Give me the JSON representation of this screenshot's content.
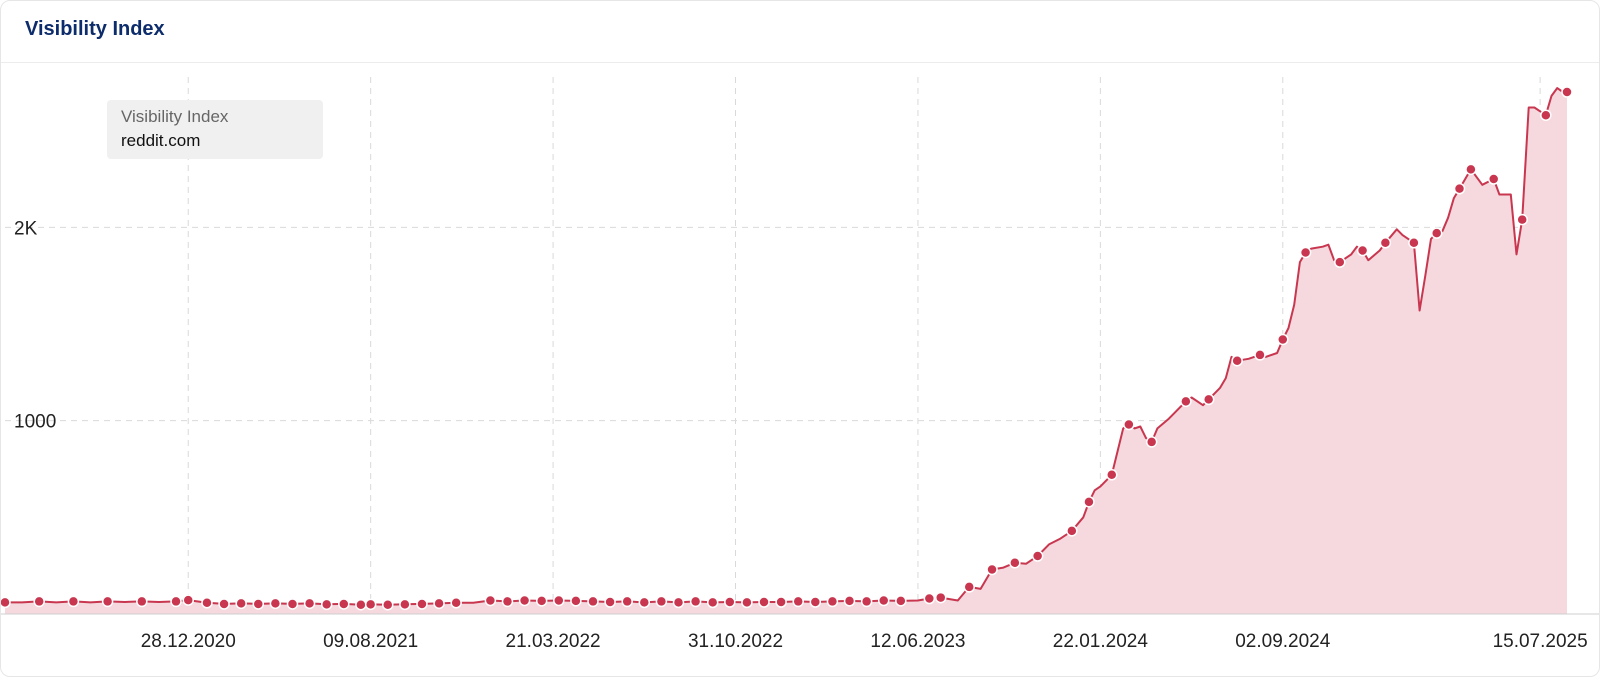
{
  "card": {
    "title": "Visibility Index"
  },
  "legend": {
    "label": "Visibility Index",
    "domain": "reddit.com"
  },
  "colors": {
    "line": "#c8374f",
    "fill": "#f5d9de",
    "marker_stroke": "#ffffff",
    "grid": "#d9d9d9",
    "title": "#0d2c6c"
  },
  "chart_data": {
    "type": "area",
    "title": "Visibility Index",
    "xlabel": "",
    "ylabel": "",
    "ylim": [
      0,
      2850
    ],
    "xlim": [
      "2020-05-17",
      "2025-08-17"
    ],
    "yticks": [
      {
        "value": 1000,
        "label": "1000"
      },
      {
        "value": 2000,
        "label": "2K"
      }
    ],
    "xticks": [
      "28.12.2020",
      "09.08.2021",
      "21.03.2022",
      "31.10.2022",
      "12.06.2023",
      "22.01.2024",
      "02.09.2024",
      "15.07.2025"
    ],
    "grid": true,
    "legend_position": "top-left",
    "series": [
      {
        "name": "reddit.com",
        "points": [
          [
            "2020-05-17",
            60
          ],
          [
            "2020-06-07",
            60
          ],
          [
            "2020-06-28",
            65
          ],
          [
            "2020-07-19",
            60
          ],
          [
            "2020-08-09",
            65
          ],
          [
            "2020-08-30",
            60
          ],
          [
            "2020-09-20",
            65
          ],
          [
            "2020-10-11",
            62
          ],
          [
            "2020-11-01",
            65
          ],
          [
            "2020-11-22",
            62
          ],
          [
            "2020-12-13",
            65
          ],
          [
            "2020-12-28",
            72
          ],
          [
            "2021-01-20",
            58
          ],
          [
            "2021-02-10",
            52
          ],
          [
            "2021-03-03",
            55
          ],
          [
            "2021-03-24",
            52
          ],
          [
            "2021-04-14",
            55
          ],
          [
            "2021-05-05",
            52
          ],
          [
            "2021-05-26",
            55
          ],
          [
            "2021-06-16",
            50
          ],
          [
            "2021-07-07",
            52
          ],
          [
            "2021-07-28",
            48
          ],
          [
            "2021-08-09",
            50
          ],
          [
            "2021-08-30",
            48
          ],
          [
            "2021-09-20",
            50
          ],
          [
            "2021-10-11",
            52
          ],
          [
            "2021-11-01",
            55
          ],
          [
            "2021-11-22",
            58
          ],
          [
            "2021-12-13",
            58
          ],
          [
            "2022-01-03",
            70
          ],
          [
            "2022-01-24",
            65
          ],
          [
            "2022-02-14",
            70
          ],
          [
            "2022-03-07",
            68
          ],
          [
            "2022-03-28",
            70
          ],
          [
            "2022-04-18",
            68
          ],
          [
            "2022-05-09",
            65
          ],
          [
            "2022-05-30",
            62
          ],
          [
            "2022-06-20",
            65
          ],
          [
            "2022-07-11",
            60
          ],
          [
            "2022-08-01",
            65
          ],
          [
            "2022-08-22",
            60
          ],
          [
            "2022-09-12",
            65
          ],
          [
            "2022-10-03",
            60
          ],
          [
            "2022-10-24",
            62
          ],
          [
            "2022-11-14",
            60
          ],
          [
            "2022-12-05",
            62
          ],
          [
            "2022-12-26",
            62
          ],
          [
            "2023-01-16",
            65
          ],
          [
            "2023-02-06",
            62
          ],
          [
            "2023-02-27",
            65
          ],
          [
            "2023-03-20",
            68
          ],
          [
            "2023-04-10",
            65
          ],
          [
            "2023-05-01",
            70
          ],
          [
            "2023-05-22",
            68
          ],
          [
            "2023-06-12",
            70
          ],
          [
            "2023-06-26",
            80
          ],
          [
            "2023-07-10",
            85
          ],
          [
            "2023-07-31",
            70
          ],
          [
            "2023-08-14",
            140
          ],
          [
            "2023-08-28",
            130
          ],
          [
            "2023-09-11",
            230
          ],
          [
            "2023-09-25",
            240
          ],
          [
            "2023-10-09",
            265
          ],
          [
            "2023-10-23",
            260
          ],
          [
            "2023-11-06",
            300
          ],
          [
            "2023-11-20",
            360
          ],
          [
            "2023-12-04",
            390
          ],
          [
            "2023-12-18",
            430
          ],
          [
            "2024-01-01",
            500
          ],
          [
            "2024-01-08",
            580
          ],
          [
            "2024-01-15",
            640
          ],
          [
            "2024-01-22",
            660
          ],
          [
            "2024-02-05",
            720
          ],
          [
            "2024-02-19",
            960
          ],
          [
            "2024-02-26",
            980
          ],
          [
            "2024-03-04",
            960
          ],
          [
            "2024-03-11",
            970
          ],
          [
            "2024-03-18",
            910
          ],
          [
            "2024-03-25",
            890
          ],
          [
            "2024-04-01",
            960
          ],
          [
            "2024-04-15",
            1010
          ],
          [
            "2024-04-22",
            1040
          ],
          [
            "2024-05-06",
            1100
          ],
          [
            "2024-05-13",
            1120
          ],
          [
            "2024-05-27",
            1080
          ],
          [
            "2024-06-03",
            1110
          ],
          [
            "2024-06-17",
            1170
          ],
          [
            "2024-06-24",
            1220
          ],
          [
            "2024-07-01",
            1330
          ],
          [
            "2024-07-08",
            1310
          ],
          [
            "2024-07-22",
            1320
          ],
          [
            "2024-08-05",
            1340
          ],
          [
            "2024-08-12",
            1330
          ],
          [
            "2024-08-26",
            1350
          ],
          [
            "2024-09-02",
            1420
          ],
          [
            "2024-09-09",
            1480
          ],
          [
            "2024-09-16",
            1600
          ],
          [
            "2024-09-23",
            1820
          ],
          [
            "2024-09-30",
            1870
          ],
          [
            "2024-10-07",
            1890
          ],
          [
            "2024-10-21",
            1900
          ],
          [
            "2024-10-28",
            1910
          ],
          [
            "2024-11-04",
            1830
          ],
          [
            "2024-11-11",
            1820
          ],
          [
            "2024-11-25",
            1860
          ],
          [
            "2024-12-02",
            1900
          ],
          [
            "2024-12-09",
            1880
          ],
          [
            "2024-12-16",
            1830
          ],
          [
            "2024-12-30",
            1880
          ],
          [
            "2025-01-06",
            1920
          ],
          [
            "2025-01-20",
            1990
          ],
          [
            "2025-01-27",
            1960
          ],
          [
            "2025-02-10",
            1920
          ],
          [
            "2025-02-17",
            1570
          ],
          [
            "2025-02-24",
            1750
          ],
          [
            "2025-03-03",
            1940
          ],
          [
            "2025-03-10",
            1970
          ],
          [
            "2025-03-17",
            1980
          ],
          [
            "2025-03-24",
            2050
          ],
          [
            "2025-03-31",
            2150
          ],
          [
            "2025-04-07",
            2200
          ],
          [
            "2025-04-21",
            2300
          ],
          [
            "2025-05-05",
            2220
          ],
          [
            "2025-05-19",
            2250
          ],
          [
            "2025-05-26",
            2170
          ],
          [
            "2025-06-09",
            2170
          ],
          [
            "2025-06-16",
            1860
          ],
          [
            "2025-06-23",
            2040
          ],
          [
            "2025-07-01",
            2620
          ],
          [
            "2025-07-08",
            2620
          ],
          [
            "2025-07-15",
            2600
          ],
          [
            "2025-07-22",
            2580
          ],
          [
            "2025-07-29",
            2680
          ],
          [
            "2025-08-05",
            2720
          ],
          [
            "2025-08-12",
            2700
          ],
          [
            "2025-08-17",
            2700
          ]
        ],
        "markers": [
          "2020-05-17",
          "2020-06-28",
          "2020-08-09",
          "2020-09-20",
          "2020-11-01",
          "2020-12-13",
          "2020-12-28",
          "2021-01-20",
          "2021-02-10",
          "2021-03-03",
          "2021-03-24",
          "2021-04-14",
          "2021-05-05",
          "2021-05-26",
          "2021-06-16",
          "2021-07-07",
          "2021-07-28",
          "2021-08-09",
          "2021-08-30",
          "2021-09-20",
          "2021-10-11",
          "2021-11-01",
          "2021-11-22",
          "2022-01-03",
          "2022-01-24",
          "2022-02-14",
          "2022-03-07",
          "2022-03-28",
          "2022-04-18",
          "2022-05-09",
          "2022-05-30",
          "2022-06-20",
          "2022-07-11",
          "2022-08-01",
          "2022-08-22",
          "2022-09-12",
          "2022-10-03",
          "2022-10-24",
          "2022-11-14",
          "2022-12-05",
          "2022-12-26",
          "2023-01-16",
          "2023-02-06",
          "2023-02-27",
          "2023-03-20",
          "2023-04-10",
          "2023-05-01",
          "2023-05-22",
          "2023-06-26",
          "2023-07-10",
          "2023-08-14",
          "2023-09-11",
          "2023-10-09",
          "2023-11-06",
          "2023-12-18",
          "2024-01-08",
          "2024-02-05",
          "2024-02-26",
          "2024-03-25",
          "2024-05-06",
          "2024-06-03",
          "2024-07-08",
          "2024-08-05",
          "2024-09-02",
          "2024-09-30",
          "2024-11-11",
          "2024-12-09",
          "2025-01-06",
          "2025-02-10",
          "2025-03-10",
          "2025-04-07",
          "2025-04-21",
          "2025-05-19",
          "2025-06-23",
          "2025-07-22",
          "2025-08-17"
        ]
      }
    ]
  }
}
